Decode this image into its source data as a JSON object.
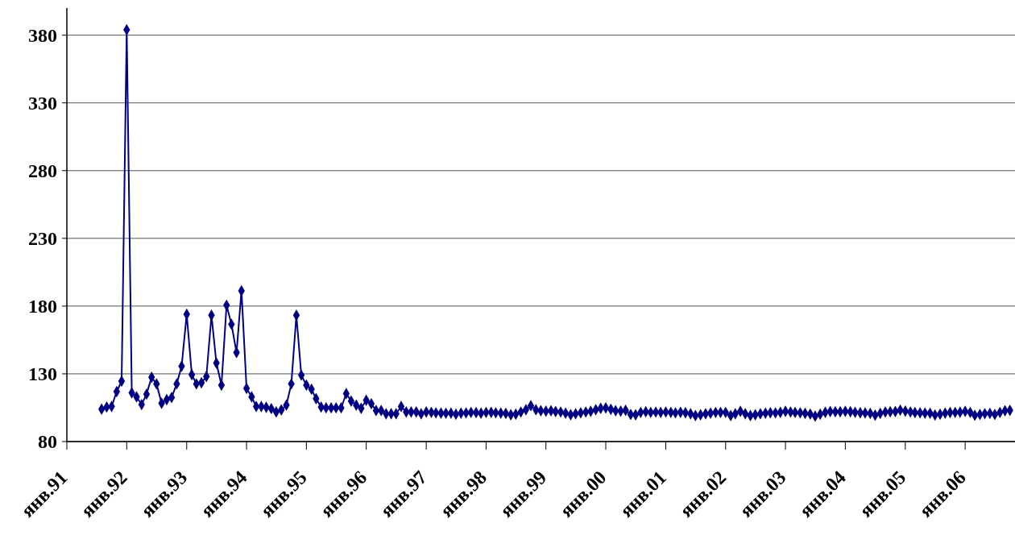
{
  "chart_data": {
    "type": "line",
    "x": [
      "1991-08",
      "1991-09",
      "1991-10",
      "1991-11",
      "1991-12",
      "1992-01",
      "1992-02",
      "1992-03",
      "1992-04",
      "1992-05",
      "1992-06",
      "1992-07",
      "1992-08",
      "1992-09",
      "1992-10",
      "1992-11",
      "1992-12",
      "1993-01",
      "1993-02",
      "1993-03",
      "1993-04",
      "1993-05",
      "1993-06",
      "1993-07",
      "1993-08",
      "1993-09",
      "1993-10",
      "1993-11",
      "1993-12",
      "1994-01",
      "1994-02",
      "1994-03",
      "1994-04",
      "1994-05",
      "1994-06",
      "1994-07",
      "1994-08",
      "1994-09",
      "1994-10",
      "1994-11",
      "1994-12",
      "1995-01",
      "1995-02",
      "1995-03",
      "1995-04",
      "1995-05",
      "1995-06",
      "1995-07",
      "1995-08",
      "1995-09",
      "1995-10",
      "1995-11",
      "1995-12",
      "1996-01",
      "1996-02",
      "1996-03",
      "1996-04",
      "1996-05",
      "1996-06",
      "1996-07",
      "1996-08",
      "1996-09",
      "1996-10",
      "1996-11",
      "1996-12",
      "1997-01",
      "1997-02",
      "1997-03",
      "1997-04",
      "1997-05",
      "1997-06",
      "1997-07",
      "1997-08",
      "1997-09",
      "1997-10",
      "1997-11",
      "1997-12",
      "1998-01",
      "1998-02",
      "1998-03",
      "1998-04",
      "1998-05",
      "1998-06",
      "1998-07",
      "1998-08",
      "1998-09",
      "1998-10",
      "1998-11",
      "1998-12",
      "1999-01",
      "1999-02",
      "1999-03",
      "1999-04",
      "1999-05",
      "1999-06",
      "1999-07",
      "1999-08",
      "1999-09",
      "1999-10",
      "1999-11",
      "1999-12",
      "2000-01",
      "2000-02",
      "2000-03",
      "2000-04",
      "2000-05",
      "2000-06",
      "2000-07",
      "2000-08",
      "2000-09",
      "2000-10",
      "2000-11",
      "2000-12",
      "2001-01",
      "2001-02",
      "2001-03",
      "2001-04",
      "2001-05",
      "2001-06",
      "2001-07",
      "2001-08",
      "2001-09",
      "2001-10",
      "2001-11",
      "2001-12",
      "2002-01",
      "2002-02",
      "2002-03",
      "2002-04",
      "2002-05",
      "2002-06",
      "2002-07",
      "2002-08",
      "2002-09",
      "2002-10",
      "2002-11",
      "2002-12",
      "2003-01",
      "2003-02",
      "2003-03",
      "2003-04",
      "2003-05",
      "2003-06",
      "2003-07",
      "2003-08",
      "2003-09",
      "2003-10",
      "2003-11",
      "2003-12",
      "2004-01",
      "2004-02",
      "2004-03",
      "2004-04",
      "2004-05",
      "2004-06",
      "2004-07",
      "2004-08",
      "2004-09",
      "2004-10",
      "2004-11",
      "2004-12",
      "2005-01",
      "2005-02",
      "2005-03",
      "2005-04",
      "2005-05",
      "2005-06",
      "2005-07",
      "2005-08",
      "2005-09",
      "2005-10",
      "2005-11",
      "2005-12",
      "2006-01",
      "2006-02",
      "2006-03",
      "2006-04",
      "2006-05",
      "2006-06",
      "2006-07",
      "2006-08",
      "2006-09",
      "2006-10"
    ],
    "series": [
      {
        "color": "#000080",
        "values": [
          103.9,
          105.5,
          105.9,
          116.9,
          124.6,
          384,
          116,
          113,
          107.3,
          115,
          127.4,
          122.6,
          108.3,
          110.9,
          112.5,
          122.6,
          135.6,
          174,
          129.4,
          122.6,
          123.4,
          128,
          173.2,
          138,
          121.6,
          180.6,
          166.6,
          145.7,
          191.3,
          119.3,
          113,
          105.9,
          105.9,
          105.3,
          104.3,
          101.9,
          103.3,
          106.9,
          122.6,
          173.2,
          129,
          121.6,
          118.6,
          111.7,
          105.5,
          104.9,
          104.9,
          104.9,
          104.9,
          115.4,
          109.9,
          106.9,
          104.5,
          110.5,
          107.9,
          102.9,
          102.9,
          100.5,
          100.5,
          100.5,
          105.9,
          101.9,
          101.9,
          101.9,
          100.5,
          101.9,
          101.5,
          101.2,
          101.0,
          100.9,
          101.0,
          100.2,
          101.0,
          101.2,
          101.5,
          101.4,
          101.0,
          101.5,
          101.6,
          101.2,
          101.0,
          100.8,
          99.8,
          100.2,
          101.8,
          103.5,
          106.5,
          103.5,
          102.8,
          102.5,
          102.8,
          102.2,
          101.8,
          101.0,
          99.8,
          100.5,
          101.2,
          101.8,
          102.3,
          103.5,
          104.5,
          104.8,
          103.8,
          102.8,
          102.5,
          103.0,
          100.0,
          99.8,
          101.5,
          102.0,
          101.5,
          101.8,
          101.5,
          101.8,
          101.5,
          101.2,
          101.6,
          101.3,
          100.5,
          99.2,
          99.8,
          100.5,
          101.0,
          101.5,
          101.5,
          101.5,
          99.2,
          100.5,
          102.3,
          100.5,
          99.2,
          99.8,
          100.5,
          101.0,
          101.3,
          101.2,
          101.6,
          102.3,
          101.8,
          101.5,
          101.2,
          100.8,
          100.3,
          98.8,
          100.2,
          101.6,
          102.2,
          102.0,
          102.0,
          102.3,
          102.0,
          101.6,
          101.3,
          101.1,
          100.8,
          99.5,
          100.8,
          101.8,
          102.0,
          102.2,
          103.2,
          102.5,
          101.8,
          101.4,
          101.2,
          101.0,
          100.9,
          99.6,
          100.2,
          101.0,
          101.4,
          101.5,
          101.7,
          102.3,
          101.5,
          99.4,
          100.0,
          100.6,
          100.8,
          100.0,
          101.5,
          102.8,
          103.0
        ]
      }
    ],
    "xlim": [
      "1991-01",
      "2006-11"
    ],
    "xticks": [
      {
        "value": "1991-01",
        "label": "янв.91"
      },
      {
        "value": "1992-01",
        "label": "янв.92"
      },
      {
        "value": "1993-01",
        "label": "янв.93"
      },
      {
        "value": "1994-01",
        "label": "янв.94"
      },
      {
        "value": "1995-01",
        "label": "янв.95"
      },
      {
        "value": "1996-01",
        "label": "янв.96"
      },
      {
        "value": "1997-01",
        "label": "янв.97"
      },
      {
        "value": "1998-01",
        "label": "янв.98"
      },
      {
        "value": "1999-01",
        "label": "янв.99"
      },
      {
        "value": "2000-01",
        "label": "янв.00"
      },
      {
        "value": "2001-01",
        "label": "янв.01"
      },
      {
        "value": "2002-01",
        "label": "янв.02"
      },
      {
        "value": "2003-01",
        "label": "янв.03"
      },
      {
        "value": "2004-01",
        "label": "янв.04"
      },
      {
        "value": "2005-01",
        "label": "янв.05"
      },
      {
        "value": "2006-01",
        "label": "янв.06"
      }
    ],
    "ylim": [
      80,
      400
    ],
    "yticks": [
      80,
      130,
      180,
      230,
      280,
      330,
      380
    ],
    "grid": "y",
    "marker": "diamond",
    "line_style": "solid"
  }
}
